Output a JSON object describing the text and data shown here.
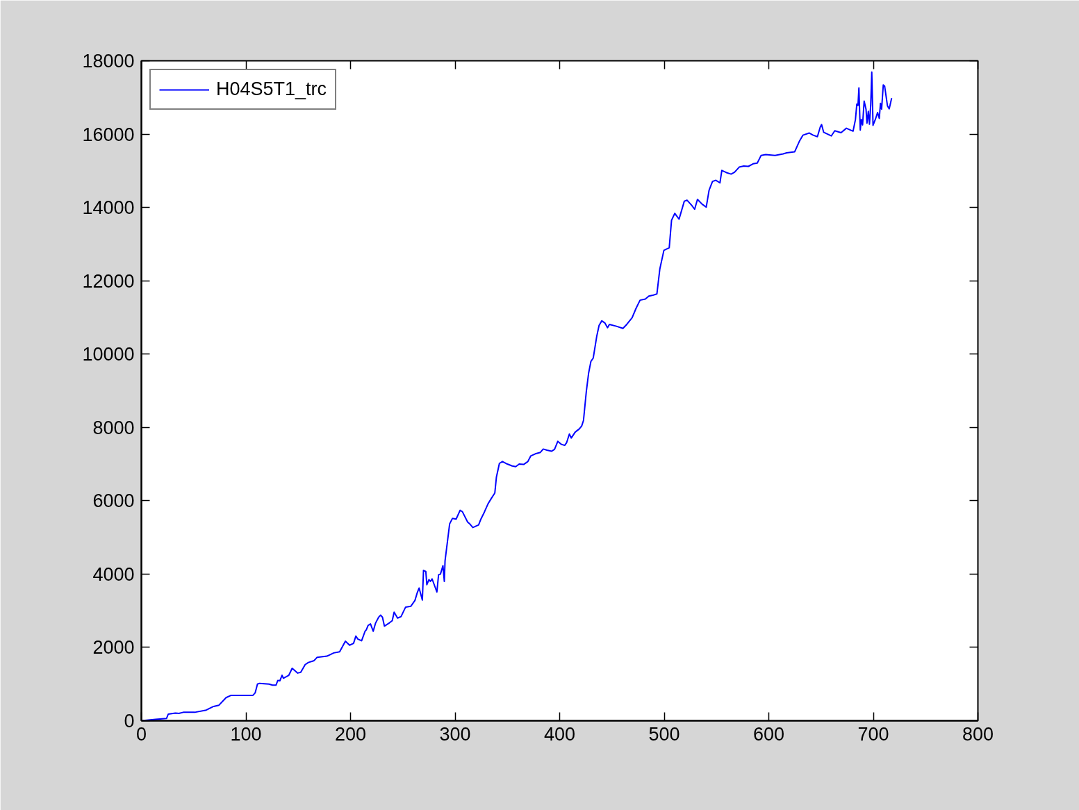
{
  "chart_data": {
    "type": "line",
    "x": [
      0,
      13.5,
      24,
      25.7,
      32.4,
      35.7,
      40,
      51,
      62,
      69,
      74,
      81,
      85.5,
      106.5,
      108.8,
      111,
      113,
      122,
      125.4,
      128.7,
      130.5,
      132.5,
      134.5,
      135.8,
      141,
      144.2,
      149.5,
      152.4,
      156.6,
      159.7,
      165.2,
      168.1,
      177.4,
      184,
      189.6,
      195.1,
      199.1,
      202.9,
      205.1,
      206.9,
      210.6,
      213.9,
      215.1,
      216.8,
      219.1,
      221.7,
      223.9,
      226.8,
      228.8,
      230.6,
      232.4,
      237.2,
      239.9,
      241.7,
      245,
      248.3,
      252.7,
      257.6,
      261.6,
      263.8,
      265.6,
      268.7,
      269.8,
      272,
      273,
      275,
      276.4,
      278,
      282.6,
      284.2,
      286,
      288.4,
      289.7,
      290.4,
      294.8,
      297.5,
      301,
      304.8,
      307,
      312,
      314.3,
      317,
      322.5,
      324.7,
      328,
      331.4,
      335,
      338,
      339.5,
      342.4,
      345.3,
      350,
      354.6,
      358,
      361.3,
      365.6,
      369.6,
      372.3,
      376.7,
      381.6,
      384.3,
      387.8,
      392.2,
      395.1,
      398.2,
      401.5,
      404.8,
      406.6,
      409.3,
      411.1,
      414.8,
      418.8,
      421.1,
      422.8,
      425.5,
      427.7,
      429.9,
      432.1,
      435.5,
      437.7,
      440.3,
      443.2,
      445.8,
      447.6,
      454.3,
      460.5,
      464.2,
      469.3,
      473.1,
      476.9,
      481.9,
      485.3,
      489.7,
      493,
      495.8,
      499.7,
      504.8,
      507,
      510.1,
      514.2,
      519.2,
      521.8,
      526.2,
      529.1,
      531.8,
      536.2,
      540.2,
      542.9,
      546.2,
      549.5,
      553.3,
      555.1,
      559.5,
      564,
      567.3,
      571.7,
      576.1,
      580.5,
      585,
      589,
      592.7,
      597.1,
      606,
      613.8,
      617.1,
      624.8,
      629.2,
      632.6,
      638.6,
      642.5,
      646.5,
      649.2,
      650.5,
      652.5,
      659.8,
      663.1,
      669.1,
      674.2,
      680.6,
      682.9,
      684.2,
      685.3,
      686.2,
      686.9,
      687.5,
      688.5,
      689.7,
      691.2,
      693,
      693.9,
      695.2,
      696.3,
      697.5,
      698.5,
      699.7,
      701.9,
      704.1,
      705.7,
      706.8,
      707.9,
      709.5,
      710.8,
      713.5,
      715.2,
      717.5
    ],
    "series": [
      {
        "name": "H04S5T1_trc",
        "color": "#0000ff",
        "values": [
          0,
          40,
          60,
          180,
          210,
          200,
          230,
          230,
          290,
          390,
          420,
          630,
          690,
          690,
          760,
          1000,
          1020,
          1000,
          970,
          970,
          1100,
          1090,
          1240,
          1160,
          1240,
          1430,
          1300,
          1320,
          1530,
          1590,
          1640,
          1730,
          1760,
          1850,
          1880,
          2170,
          2060,
          2110,
          2310,
          2230,
          2180,
          2440,
          2480,
          2600,
          2640,
          2440,
          2660,
          2820,
          2880,
          2820,
          2580,
          2670,
          2730,
          2960,
          2800,
          2840,
          3100,
          3120,
          3280,
          3490,
          3620,
          3290,
          4100,
          4070,
          3710,
          3850,
          3800,
          3870,
          3510,
          3980,
          4000,
          4230,
          3800,
          4360,
          5370,
          5520,
          5500,
          5740,
          5700,
          5420,
          5360,
          5270,
          5340,
          5500,
          5690,
          5910,
          6080,
          6210,
          6640,
          7020,
          7070,
          7000,
          6950,
          6930,
          7000,
          6990,
          7070,
          7220,
          7280,
          7320,
          7410,
          7380,
          7350,
          7400,
          7620,
          7540,
          7510,
          7580,
          7820,
          7710,
          7870,
          7960,
          8040,
          8190,
          8980,
          9480,
          9800,
          9890,
          10490,
          10780,
          10910,
          10850,
          10720,
          10810,
          10760,
          10700,
          10810,
          10990,
          11250,
          11470,
          11500,
          11580,
          11610,
          11640,
          12320,
          12830,
          12900,
          13650,
          13840,
          13680,
          14170,
          14200,
          14060,
          13950,
          14220,
          14090,
          14010,
          14470,
          14710,
          14740,
          14670,
          15010,
          14950,
          14910,
          14960,
          15100,
          15130,
          15120,
          15190,
          15210,
          15420,
          15440,
          15420,
          15460,
          15490,
          15520,
          15800,
          15970,
          16030,
          15970,
          15930,
          16190,
          16260,
          16050,
          15950,
          16090,
          16040,
          16160,
          16080,
          16400,
          16820,
          16780,
          17260,
          16620,
          16110,
          16400,
          16250,
          16900,
          16680,
          16300,
          16620,
          16270,
          16800,
          17690,
          16240,
          16400,
          16590,
          16430,
          16840,
          16680,
          17340,
          17310,
          16770,
          16690,
          16980
        ]
      }
    ],
    "xlim": [
      0,
      800
    ],
    "ylim": [
      0,
      18000
    ],
    "xticks": [
      0,
      100,
      200,
      300,
      400,
      500,
      600,
      700,
      800
    ],
    "yticks": [
      0,
      2000,
      4000,
      6000,
      8000,
      10000,
      12000,
      14000,
      16000,
      18000
    ],
    "grid": false,
    "legend": "top left",
    "line_style": "solid"
  }
}
